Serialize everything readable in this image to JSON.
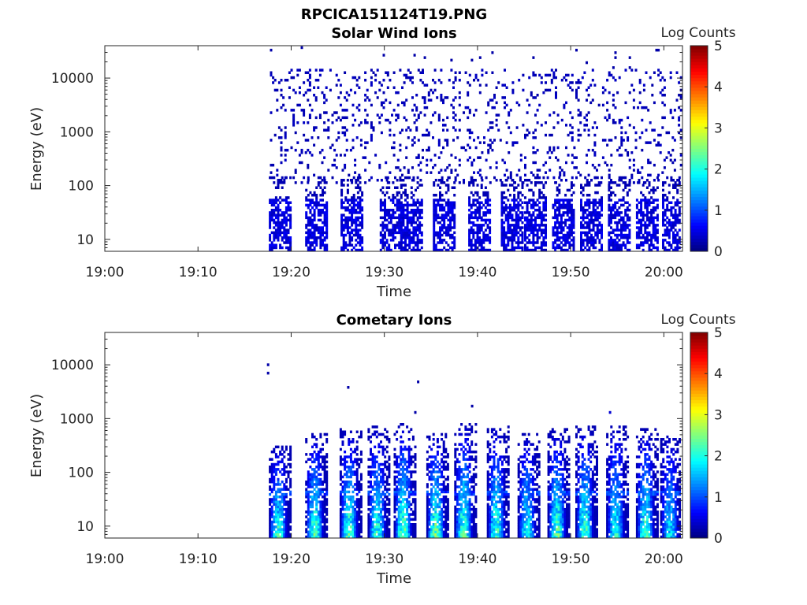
{
  "figure_title": "RPCICA151124T19.PNG",
  "chart_data": [
    {
      "type": "heatmap",
      "title": "Solar Wind Ions",
      "xlabel": "Time",
      "ylabel": "Energy (eV)",
      "yscale": "log",
      "ylim": [
        6,
        40000
      ],
      "xlim": [
        "19:00",
        "20:02"
      ],
      "xticks": [
        "19:00",
        "19:10",
        "19:20",
        "19:30",
        "19:40",
        "19:50",
        "20:00"
      ],
      "yticks": [
        10,
        100,
        1000,
        10000
      ],
      "ytick_labels": [
        "10",
        "100",
        "1000",
        "10000"
      ],
      "colorbar": {
        "label": "Log Counts",
        "range": [
          0,
          5
        ],
        "ticks": [
          "0",
          "1",
          "2",
          "3",
          "4",
          "5"
        ],
        "colormap": "jet"
      },
      "data_start": "19:17",
      "data_end": "20:02",
      "bursts_start_min": [
        17.6,
        21.5,
        25.3,
        29.5,
        31.7,
        35.2,
        39.0,
        42.5,
        45.0,
        48.0,
        51.0,
        54.0,
        57.0,
        59.8
      ],
      "band_max_log_counts": 0.6,
      "sparse_range_ev": [
        100,
        30000
      ],
      "sparse_log_counts": 0.2
    },
    {
      "type": "heatmap",
      "title": "Cometary Ions",
      "xlabel": "Time",
      "ylabel": "Energy (eV)",
      "yscale": "log",
      "ylim": [
        6,
        40000
      ],
      "xlim": [
        "19:00",
        "20:02"
      ],
      "xticks": [
        "19:00",
        "19:10",
        "19:20",
        "19:30",
        "19:40",
        "19:50",
        "20:00"
      ],
      "yticks": [
        10,
        100,
        1000,
        10000
      ],
      "ytick_labels": [
        "10",
        "100",
        "1000",
        "10000"
      ],
      "colorbar": {
        "label": "Log Counts",
        "range": [
          0,
          5
        ],
        "ticks": [
          "0",
          "1",
          "2",
          "3",
          "4",
          "5"
        ],
        "colormap": "jet"
      },
      "bursts_start_min": [
        17.6,
        21.5,
        25.2,
        28.2,
        31.0,
        34.5,
        37.5,
        41.0,
        44.3,
        47.5,
        50.5,
        53.8,
        57.0,
        59.6
      ],
      "burst_peak_log_counts": [
        2.4,
        2.6,
        2.6,
        2.4,
        2.7,
        2.8,
        2.6,
        2.5,
        2.2,
        2.6,
        2.5,
        2.3,
        2.5,
        2.0
      ],
      "burst_top_ev": [
        300,
        500,
        600,
        700,
        800,
        500,
        800,
        700,
        500,
        600,
        700,
        700,
        600,
        500
      ],
      "isolated_points": [
        {
          "t_min": 17.4,
          "ev": 10000,
          "log_counts": 0.2
        },
        {
          "t_min": 17.4,
          "ev": 7000,
          "log_counts": 0.2
        },
        {
          "t_min": 26.0,
          "ev": 3800,
          "log_counts": 0.2
        },
        {
          "t_min": 33.5,
          "ev": 4800,
          "log_counts": 0.2
        },
        {
          "t_min": 33.2,
          "ev": 1300,
          "log_counts": 0.2
        },
        {
          "t_min": 39.3,
          "ev": 1700,
          "log_counts": 0.2
        },
        {
          "t_min": 54.1,
          "ev": 1300,
          "log_counts": 0.4
        }
      ]
    }
  ]
}
